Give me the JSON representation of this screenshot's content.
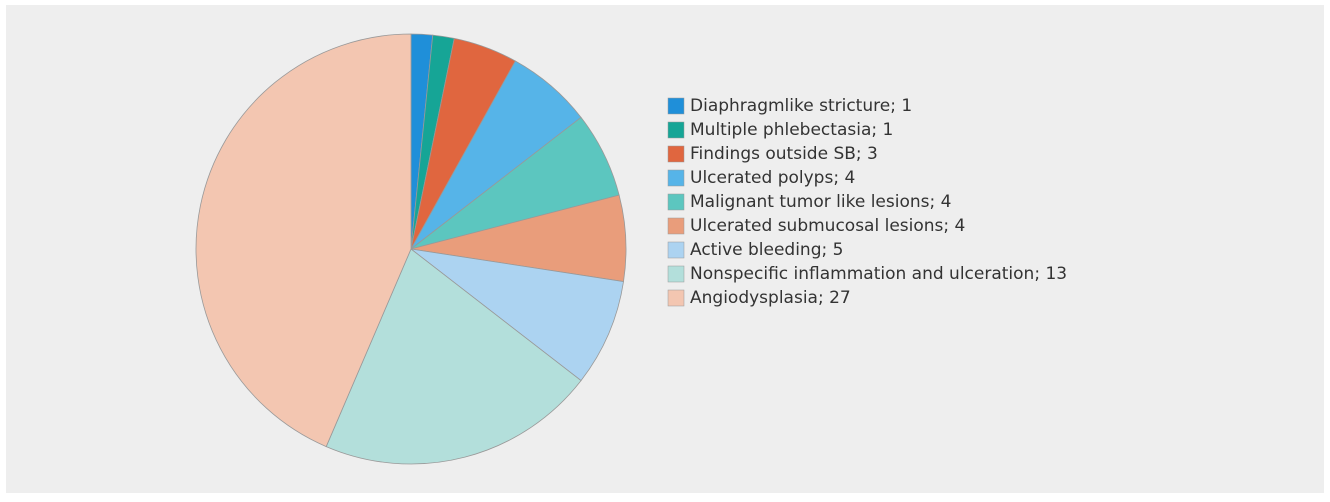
{
  "chart_data": {
    "type": "pie",
    "categories": [
      "Diaphragmlike stricture; 1",
      "Multiple phlebectasia; 1",
      "Findings outside SB; 3",
      "Ulcerated polyps; 4",
      "Malignant tumor like lesions; 4",
      "Ulcerated submucosal lesions; 4",
      "Active bleeding; 5",
      "Nonspecific inflammation and ulceration; 13",
      "Angiodysplasia; 27"
    ],
    "values": [
      1,
      1,
      3,
      4,
      4,
      4,
      5,
      13,
      27
    ],
    "colors": [
      "#1f8fd9",
      "#16a596",
      "#e0663f",
      "#56b4e8",
      "#5cc6bf",
      "#e99d7b",
      "#acd3f1",
      "#b3dfdb",
      "#f3c6b1"
    ],
    "legend": "right"
  }
}
